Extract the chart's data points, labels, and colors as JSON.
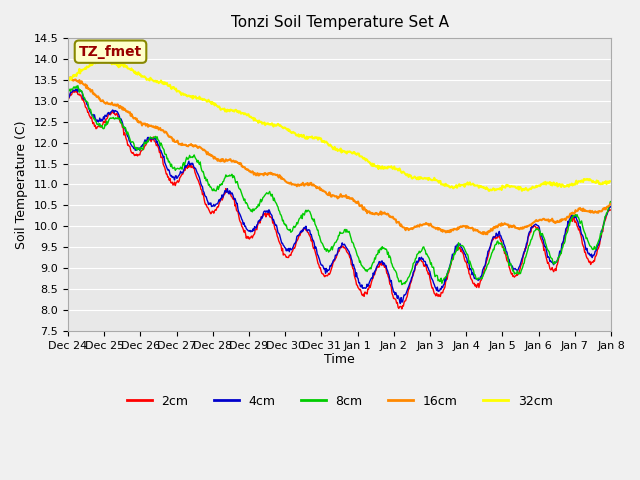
{
  "title": "Tonzi Soil Temperature Set A",
  "xlabel": "Time",
  "ylabel": "Soil Temperature (C)",
  "ylim": [
    7.5,
    14.5
  ],
  "tick_labels": [
    "Dec 24",
    "Dec 25",
    "Dec 26",
    "Dec 27",
    "Dec 28",
    "Dec 29",
    "Dec 30",
    "Dec 31",
    "Jan 1",
    "Jan 2",
    "Jan 3",
    "Jan 4",
    "Jan 5",
    "Jan 6",
    "Jan 7",
    "Jan 8"
  ],
  "legend_labels": [
    "2cm",
    "4cm",
    "8cm",
    "16cm",
    "32cm"
  ],
  "legend_colors": [
    "#ff0000",
    "#0000cc",
    "#00cc00",
    "#ff8800",
    "#ffff00"
  ],
  "line_colors": [
    "#ff0000",
    "#0000cc",
    "#00cc00",
    "#ff8800",
    "#ffff00"
  ],
  "annotation_text": "TZ_fmet",
  "annotation_bg": "#ffffcc",
  "annotation_border": "#888800",
  "annotation_text_color": "#990000",
  "plot_bg_color": "#e8e8e8",
  "grid_color": "#ffffff"
}
